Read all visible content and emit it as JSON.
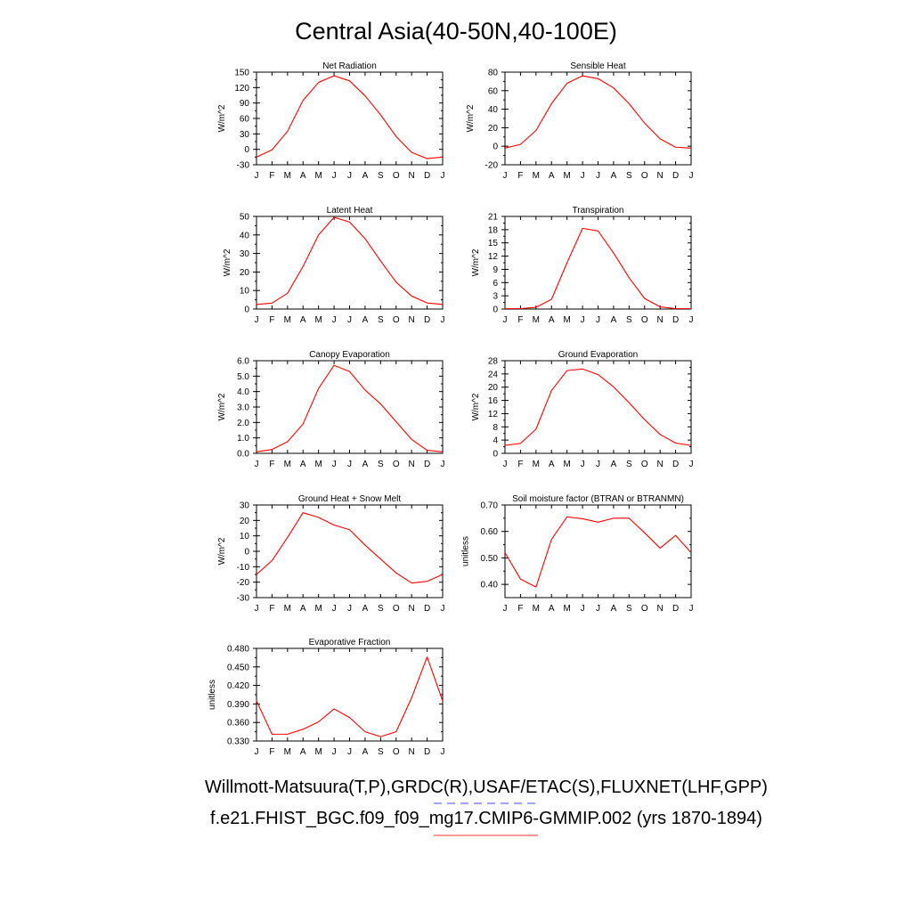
{
  "title": "Central Asia(40-50N,40-100E)",
  "footer": {
    "obs_label": "Willmott-Matsuura(T,P),GRDC(R),USAF/ETAC(S),FLUXNET(LHF,GPP)",
    "model_label": "f.e21.FHIST_BGC.f09_f09_mg17.CMIP6-GMMIP.002 (yrs 1870-1894)",
    "obs_line_color": "#4444ff",
    "model_line_color": "#ff3333"
  },
  "colors": {
    "series": "#ff0000",
    "axes": "#000000"
  },
  "chart_data": [
    {
      "type": "line",
      "title": "Net Radiation",
      "ylabel": "W/m^2",
      "x": [
        "J",
        "F",
        "M",
        "A",
        "M",
        "J",
        "J",
        "A",
        "S",
        "O",
        "N",
        "D",
        "J"
      ],
      "ylim": [
        -30,
        150
      ],
      "ytick_values": [
        -30,
        0,
        30,
        60,
        90,
        120,
        150
      ],
      "ytick_labels": [
        "-30",
        "0",
        "30",
        "60",
        "90",
        "120",
        "150"
      ],
      "series": [
        {
          "values": [
            -15,
            -1,
            35,
            95,
            130,
            143,
            133,
            104,
            67,
            25,
            -6,
            -18,
            -15
          ]
        }
      ]
    },
    {
      "type": "line",
      "title": "Sensible Heat",
      "ylabel": "W/m^2",
      "x": [
        "J",
        "F",
        "M",
        "A",
        "M",
        "J",
        "J",
        "A",
        "S",
        "O",
        "N",
        "D",
        "J"
      ],
      "ylim": [
        -20,
        80
      ],
      "ytick_values": [
        -20,
        0,
        20,
        40,
        60,
        80
      ],
      "ytick_labels": [
        "-20",
        "0",
        "20",
        "40",
        "60",
        "80"
      ],
      "series": [
        {
          "values": [
            -2,
            2,
            17,
            46,
            68,
            76,
            73,
            63,
            46,
            25,
            8,
            -1,
            -2
          ]
        }
      ]
    },
    {
      "type": "line",
      "title": "Latent Heat",
      "ylabel": "W/m^2",
      "x": [
        "J",
        "F",
        "M",
        "A",
        "M",
        "J",
        "J",
        "A",
        "S",
        "O",
        "N",
        "D",
        "J"
      ],
      "ylim": [
        0,
        50
      ],
      "ytick_values": [
        0,
        10,
        20,
        30,
        40,
        50
      ],
      "ytick_labels": [
        "0",
        "10",
        "20",
        "30",
        "40",
        "50"
      ],
      "series": [
        {
          "values": [
            2.5,
            3.2,
            8.5,
            23,
            40,
            49.5,
            47,
            38,
            26,
            14.5,
            7,
            3.3,
            2.5
          ]
        }
      ]
    },
    {
      "type": "line",
      "title": "Transpiration",
      "ylabel": "W/m^2",
      "x": [
        "J",
        "F",
        "M",
        "A",
        "M",
        "J",
        "J",
        "A",
        "S",
        "O",
        "N",
        "D",
        "J"
      ],
      "ylim": [
        0,
        21
      ],
      "ytick_values": [
        0,
        3,
        6,
        9,
        12,
        15,
        18,
        21
      ],
      "ytick_labels": [
        "0",
        "3",
        "6",
        "9",
        "12",
        "15",
        "18",
        "21"
      ],
      "series": [
        {
          "values": [
            0.1,
            0.1,
            0.4,
            2.2,
            10.5,
            18.3,
            17.7,
            12.7,
            7.1,
            2.4,
            0.5,
            0.1,
            0.1
          ]
        }
      ]
    },
    {
      "type": "line",
      "title": "Canopy Evaporation",
      "ylabel": "W/m^2",
      "x": [
        "J",
        "F",
        "M",
        "A",
        "M",
        "J",
        "J",
        "A",
        "S",
        "O",
        "N",
        "D",
        "J"
      ],
      "ylim": [
        0,
        6
      ],
      "ytick_values": [
        0,
        1,
        2,
        3,
        4,
        5,
        6
      ],
      "ytick_labels": [
        "0.0",
        "1.0",
        "2.0",
        "3.0",
        "4.0",
        "5.0",
        "6.0"
      ],
      "series": [
        {
          "values": [
            0.1,
            0.25,
            0.75,
            1.9,
            4.2,
            5.7,
            5.3,
            4.1,
            3.2,
            2.05,
            0.9,
            0.2,
            0.1
          ]
        }
      ]
    },
    {
      "type": "line",
      "title": "Ground Evaporation",
      "ylabel": "W/m^2",
      "x": [
        "J",
        "F",
        "M",
        "A",
        "M",
        "J",
        "J",
        "A",
        "S",
        "O",
        "N",
        "D",
        "J"
      ],
      "ylim": [
        0,
        28
      ],
      "ytick_values": [
        0,
        4,
        8,
        12,
        16,
        20,
        24,
        28
      ],
      "ytick_labels": [
        "0",
        "4",
        "8",
        "12",
        "16",
        "20",
        "24",
        "28"
      ],
      "series": [
        {
          "values": [
            2.4,
            3,
            7.3,
            19,
            25,
            25.5,
            23.8,
            20.1,
            15.3,
            10.2,
            5.7,
            3.1,
            2.4
          ]
        }
      ]
    },
    {
      "type": "line",
      "title": "Ground Heat + Snow Melt",
      "ylabel": "W/m^2",
      "x": [
        "J",
        "F",
        "M",
        "A",
        "M",
        "J",
        "J",
        "A",
        "S",
        "O",
        "N",
        "D",
        "J"
      ],
      "ylim": [
        -30,
        30
      ],
      "ytick_values": [
        -30,
        -20,
        -10,
        0,
        10,
        20,
        30
      ],
      "ytick_labels": [
        "-30",
        "-20",
        "-10",
        "0",
        "10",
        "20",
        "30"
      ],
      "series": [
        {
          "values": [
            -15,
            -6,
            9,
            25,
            22,
            17,
            14,
            4,
            -5,
            -14,
            -20.5,
            -19.5,
            -15
          ]
        }
      ]
    },
    {
      "type": "line",
      "title": "Soil moisture factor (BTRAN or BTRANMN)",
      "ylabel": "unitless",
      "x": [
        "J",
        "F",
        "M",
        "A",
        "M",
        "J",
        "J",
        "A",
        "S",
        "O",
        "N",
        "D",
        "J"
      ],
      "ylim": [
        0.35,
        0.7
      ],
      "ytick_values": [
        0.4,
        0.5,
        0.6,
        0.7
      ],
      "ytick_labels": [
        "0.40",
        "0.50",
        "0.60",
        "0.70"
      ],
      "series": [
        {
          "values": [
            0.52,
            0.42,
            0.39,
            0.57,
            0.655,
            0.648,
            0.635,
            0.65,
            0.65,
            0.595,
            0.537,
            0.585,
            0.52
          ]
        }
      ]
    },
    {
      "type": "line",
      "title": "Evaporative Fraction",
      "ylabel": "unitless",
      "x": [
        "J",
        "F",
        "M",
        "A",
        "M",
        "J",
        "J",
        "A",
        "S",
        "O",
        "N",
        "D",
        "J"
      ],
      "ylim": [
        0.33,
        0.48
      ],
      "ytick_values": [
        0.33,
        0.36,
        0.39,
        0.42,
        0.45,
        0.48
      ],
      "ytick_labels": [
        "0.330",
        "0.360",
        "0.390",
        "0.420",
        "0.450",
        "0.480"
      ],
      "series": [
        {
          "values": [
            0.395,
            0.341,
            0.341,
            0.349,
            0.361,
            0.382,
            0.368,
            0.345,
            0.337,
            0.345,
            0.4,
            0.466,
            0.395
          ]
        }
      ]
    }
  ]
}
